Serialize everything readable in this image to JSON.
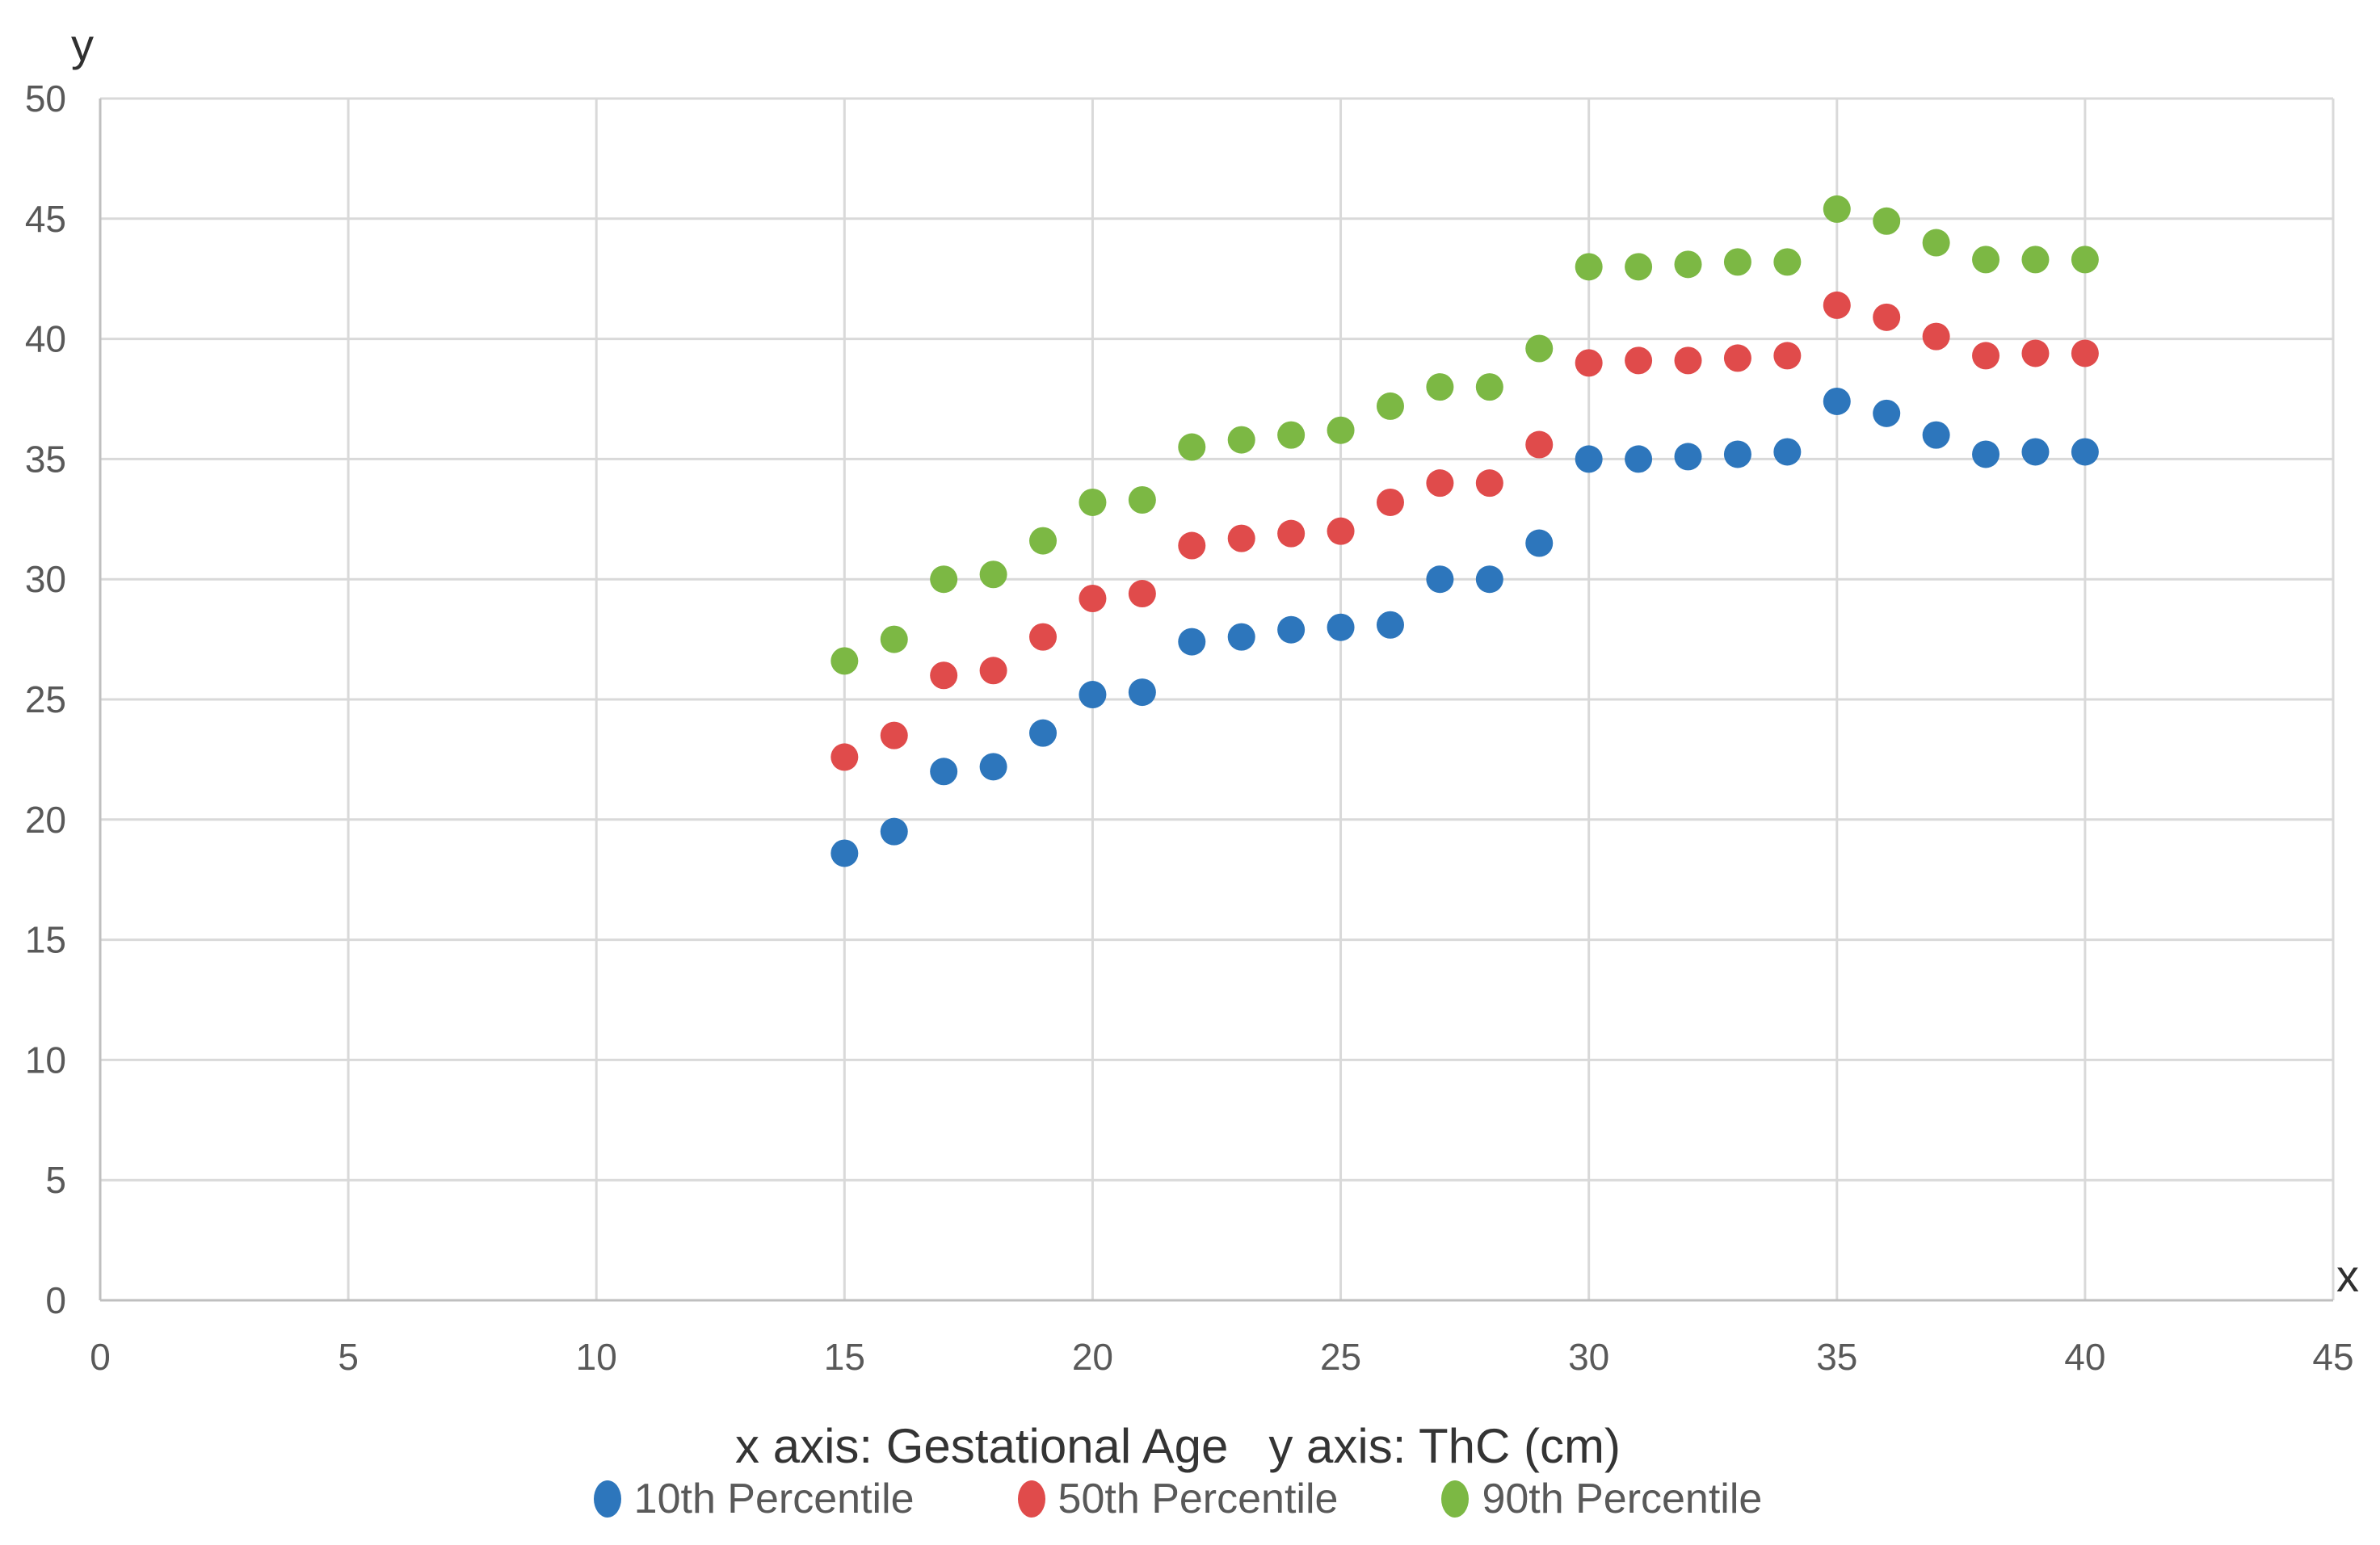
{
  "chart_data": {
    "type": "scatter",
    "caption": "x axis: Gestational Age   y axis: ThC (cm)",
    "xlabel": "Gestational Age",
    "ylabel": "ThC (cm)",
    "x_axis_letter": "x",
    "y_axis_letter": "y",
    "xlim": [
      0,
      45
    ],
    "ylim": [
      0,
      50
    ],
    "xticks": [
      0,
      5,
      10,
      15,
      20,
      25,
      30,
      35,
      40,
      45
    ],
    "yticks": [
      0,
      5,
      10,
      15,
      20,
      25,
      30,
      35,
      40,
      45,
      50
    ],
    "grid": true,
    "legend_position": "bottom",
    "x": [
      15,
      16,
      17,
      18,
      19,
      20,
      21,
      22,
      23,
      24,
      25,
      26,
      27,
      28,
      29,
      30,
      31,
      32,
      33,
      34,
      35,
      36,
      37,
      38,
      39,
      40
    ],
    "series": [
      {
        "name": "10th Percentile",
        "color": "#2D76BC",
        "values": [
          18.6,
          19.5,
          22.0,
          22.2,
          23.6,
          25.2,
          25.3,
          27.4,
          27.6,
          27.9,
          28.0,
          28.1,
          30.0,
          30.0,
          31.5,
          35.0,
          35.0,
          35.1,
          35.2,
          35.3,
          37.4,
          36.9,
          36.0,
          35.2,
          35.3,
          35.3
        ]
      },
      {
        "name": "50th Percentile",
        "color": "#E04B4B",
        "values": [
          22.6,
          23.5,
          26.0,
          26.2,
          27.6,
          29.2,
          29.4,
          31.4,
          31.7,
          31.9,
          32.0,
          33.2,
          34.0,
          34.0,
          35.6,
          39.0,
          39.1,
          39.1,
          39.2,
          39.3,
          41.4,
          40.9,
          40.1,
          39.3,
          39.4,
          39.4
        ]
      },
      {
        "name": "90th Percentile",
        "color": "#7CB844",
        "values": [
          26.6,
          27.5,
          30.0,
          30.2,
          31.6,
          33.2,
          33.3,
          35.5,
          35.8,
          36.0,
          36.2,
          37.2,
          38.0,
          38.0,
          39.6,
          43.0,
          43.0,
          43.1,
          43.2,
          43.2,
          45.4,
          44.9,
          44.0,
          43.3,
          43.3,
          43.3
        ]
      }
    ],
    "style": {
      "gridline_color": "#D9D9D9",
      "axis_line_color": "#BFBFBF",
      "tick_label_color": "#595959",
      "tick_font_size": 46,
      "point_radius": 17
    }
  }
}
